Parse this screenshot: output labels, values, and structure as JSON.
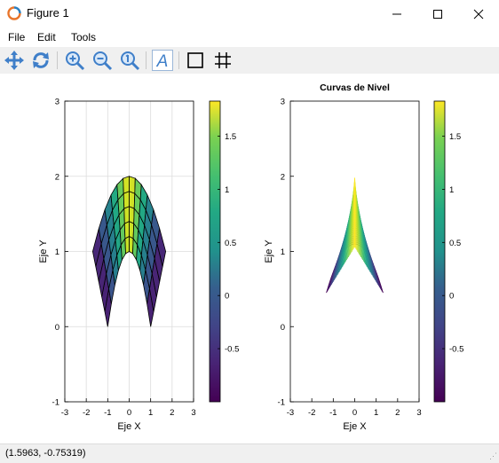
{
  "window": {
    "title": "Figure 1",
    "minimize": "—",
    "maximize": "☐",
    "close": "✕"
  },
  "menu": {
    "items": [
      "File",
      "Edit",
      "Tools"
    ]
  },
  "toolbar": {
    "tools": [
      "pan-icon",
      "rotate-icon",
      "zoom-in-icon",
      "zoom-out-icon",
      "zoom-reset-icon",
      "text-icon",
      "box-icon",
      "grid-icon"
    ]
  },
  "status": {
    "coords": "(1.5963, -0.75319)"
  },
  "chart_data": [
    {
      "type": "surface",
      "title": "",
      "xlabel": "Eje X",
      "ylabel": "Eje Y",
      "xlim": [
        -3,
        3
      ],
      "ylim": [
        -1,
        3
      ],
      "xticks": [
        -3,
        -2,
        -1,
        0,
        1,
        2,
        3
      ],
      "yticks": [
        -1,
        0,
        1,
        2,
        3
      ],
      "grid": true,
      "colorbar": {
        "ticks": [
          -0.5,
          0,
          0.5,
          1,
          1.5
        ],
        "range": [
          -1,
          1.83
        ],
        "colormap": "viridis"
      }
    },
    {
      "type": "contour",
      "title": "Curvas de Nivel",
      "xlabel": "Eje X",
      "ylabel": "Eje Y",
      "xlim": [
        -3,
        3
      ],
      "ylim": [
        -1,
        3
      ],
      "xticks": [
        -3,
        -2,
        -1,
        0,
        1,
        2,
        3
      ],
      "yticks": [
        -1,
        0,
        1,
        2,
        3
      ],
      "grid": false,
      "colorbar": {
        "ticks": [
          -0.5,
          0,
          0.5,
          1,
          1.5
        ],
        "range": [
          -1,
          1.83
        ],
        "colormap": "viridis"
      }
    }
  ]
}
